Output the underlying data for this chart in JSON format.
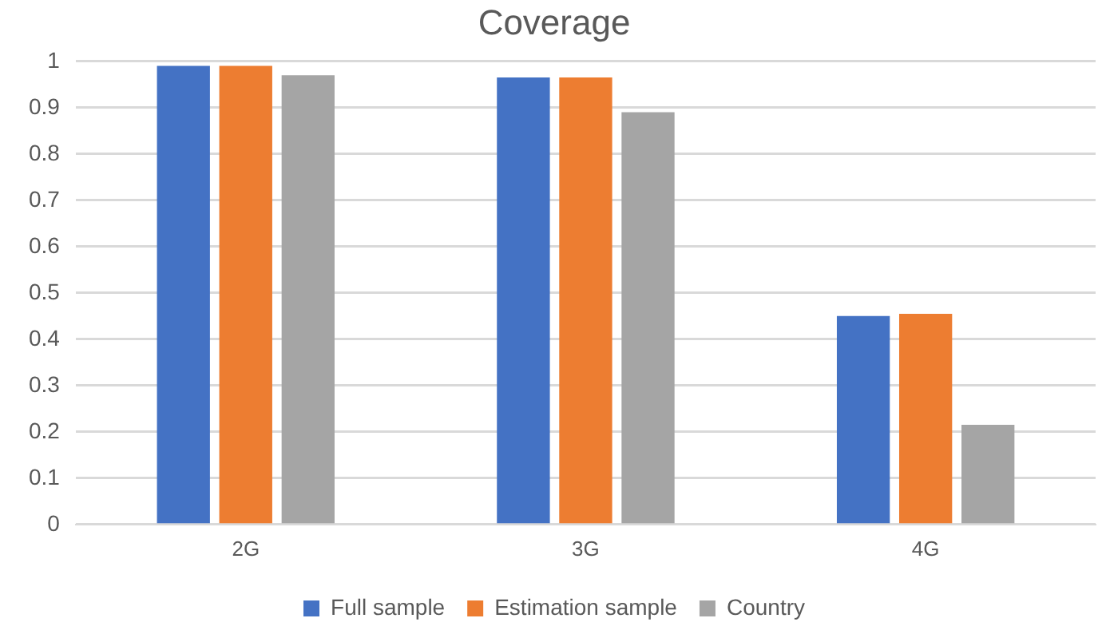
{
  "chart_data": {
    "type": "bar",
    "title": "Coverage",
    "categories": [
      "2G",
      "3G",
      "4G"
    ],
    "series": [
      {
        "name": "Full sample",
        "color": "#4472c4",
        "values": [
          0.99,
          0.965,
          0.45
        ]
      },
      {
        "name": "Estimation sample",
        "color": "#ed7d31",
        "values": [
          0.99,
          0.965,
          0.455
        ]
      },
      {
        "name": "Country",
        "color": "#a5a5a5",
        "values": [
          0.97,
          0.89,
          0.215
        ]
      }
    ],
    "ylim": [
      0,
      1
    ],
    "yticks": [
      0,
      0.1,
      0.2,
      0.3,
      0.4,
      0.5,
      0.6,
      0.7,
      0.8,
      0.9,
      1
    ],
    "grid": "y",
    "legend": "bottom"
  }
}
